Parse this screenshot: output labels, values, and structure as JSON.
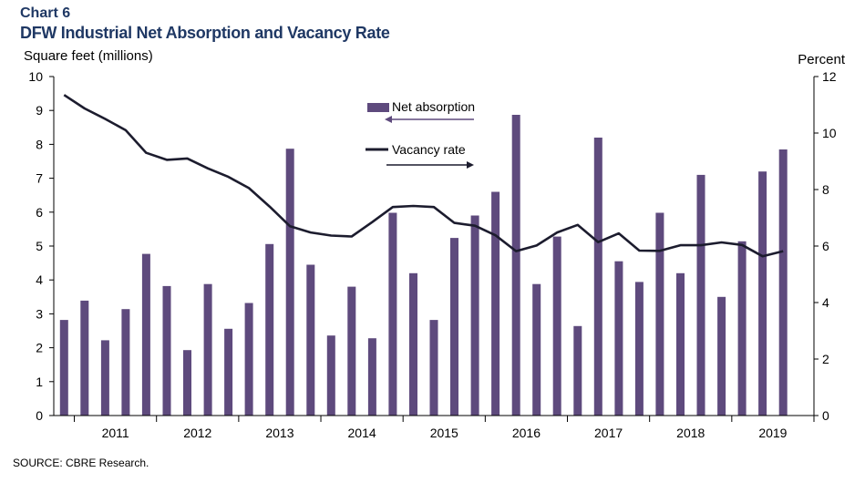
{
  "header": {
    "chart_label": "Chart 6",
    "title": "DFW Industrial Net Absorption and Vacancy Rate"
  },
  "footer": {
    "source": "SOURCE: CBRE Research."
  },
  "colors": {
    "bars": "#5e4a7d",
    "line": "#1c1c2e",
    "title": "#1f3864"
  },
  "chart_data": {
    "type": "bar",
    "title": "DFW Industrial Net Absorption and Vacancy Rate",
    "y_left_label": "Square feet (millions)",
    "y_right_label": "Percent",
    "y_left_range": [
      0,
      10
    ],
    "y_right_range": [
      0,
      12
    ],
    "y_left_ticks": [
      0,
      1,
      2,
      3,
      4,
      5,
      6,
      7,
      8,
      9,
      10
    ],
    "y_right_ticks": [
      0,
      2,
      4,
      6,
      8,
      10,
      12
    ],
    "x_year_labels": [
      "2011",
      "2012",
      "2013",
      "2014",
      "2015",
      "2016",
      "2017",
      "2018",
      "2019"
    ],
    "legend_position": "top-center",
    "grid": false,
    "categories": [
      "2010 Q4",
      "2011 Q1",
      "2011 Q2",
      "2011 Q3",
      "2011 Q4",
      "2012 Q1",
      "2012 Q2",
      "2012 Q3",
      "2012 Q4",
      "2013 Q1",
      "2013 Q2",
      "2013 Q3",
      "2013 Q4",
      "2014 Q1",
      "2014 Q2",
      "2014 Q3",
      "2014 Q4",
      "2015 Q1",
      "2015 Q2",
      "2015 Q3",
      "2015 Q4",
      "2016 Q1",
      "2016 Q2",
      "2016 Q3",
      "2016 Q4",
      "2017 Q1",
      "2017 Q2",
      "2017 Q3",
      "2017 Q4",
      "2018 Q1",
      "2018 Q2",
      "2018 Q3",
      "2018 Q4",
      "2019 Q1",
      "2019 Q2",
      "2019 Q3",
      "2019 Q4"
    ],
    "series": [
      {
        "name": "Net absorption",
        "type": "bar",
        "axis": "left",
        "values": [
          2.82,
          3.39,
          2.22,
          3.14,
          4.77,
          3.82,
          1.93,
          3.88,
          2.56,
          3.32,
          5.06,
          7.87,
          4.45,
          2.36,
          3.8,
          2.28,
          5.98,
          4.2,
          2.82,
          5.24,
          5.9,
          6.6,
          8.87,
          3.88,
          5.28,
          2.64,
          8.2,
          4.55,
          3.94,
          5.98,
          4.2,
          7.1,
          3.5,
          5.14,
          7.2,
          7.85,
          0
        ]
      },
      {
        "name": "Vacancy rate",
        "type": "line",
        "axis": "right",
        "values": [
          11.35,
          10.87,
          10.5,
          10.1,
          9.3,
          9.05,
          9.1,
          8.75,
          8.45,
          8.05,
          7.4,
          6.7,
          6.48,
          6.37,
          6.34,
          6.85,
          7.38,
          7.42,
          7.38,
          6.82,
          6.72,
          6.38,
          5.82,
          6.02,
          6.48,
          6.75,
          6.14,
          6.45,
          5.84,
          5.83,
          6.03,
          6.03,
          6.13,
          6.04,
          5.64,
          5.82,
          null
        ]
      }
    ]
  }
}
